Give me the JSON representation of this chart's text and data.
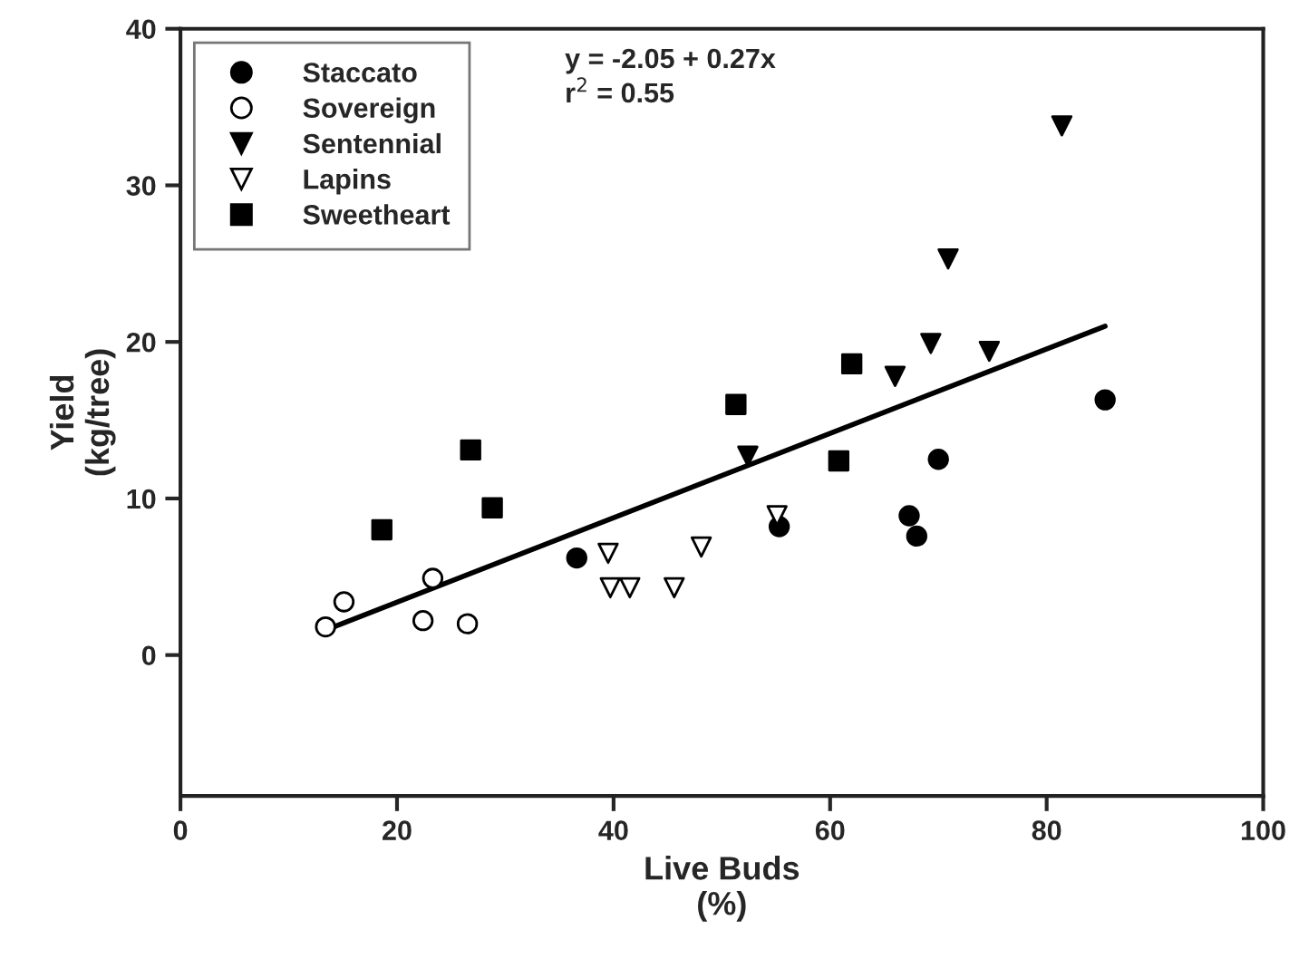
{
  "chart_data": {
    "type": "scatter",
    "xlabel": "Live Buds\n(%)",
    "ylabel": "Yield\n(kg/tree)",
    "xlim": [
      0,
      100
    ],
    "xticks": [
      0,
      20,
      40,
      60,
      80,
      100
    ],
    "ylim": [
      -9,
      40
    ],
    "yticks": [
      0,
      10,
      20,
      30,
      40
    ],
    "grid": false,
    "legend": "top left",
    "annotations": [
      "y = -2.05 + 0.27x",
      "r$^{2}$ = 0.55"
    ],
    "series": [
      {
        "name": "Staccato",
        "color": "#000000",
        "marker": "circle",
        "x": [
          36.6,
          55.3,
          67.3,
          68.0,
          70.0,
          85.4
        ],
        "values": [
          6.2,
          8.2,
          8.9,
          7.6,
          12.5,
          16.3
        ]
      },
      {
        "name": "Sovereign",
        "color": "#ffffff",
        "marker": "circle",
        "x": [
          13.4,
          15.1,
          23.3,
          22.4,
          26.5
        ],
        "values": [
          1.8,
          3.4,
          4.9,
          2.2,
          2.0
        ]
      },
      {
        "name": "Sentennial",
        "color": "#000000",
        "marker": "triangle",
        "x": [
          52.4,
          66.0,
          69.3,
          70.9,
          74.7,
          81.4
        ],
        "values": [
          12.7,
          17.8,
          19.9,
          25.3,
          19.4,
          33.8
        ]
      },
      {
        "name": "Lapins",
        "color": "#ffffff",
        "marker": "triangle",
        "x": [
          39.5,
          39.7,
          41.5,
          45.6,
          48.1,
          55.1
        ],
        "values": [
          6.5,
          4.3,
          4.3,
          4.3,
          6.9,
          8.9
        ]
      },
      {
        "name": "Sweetheart",
        "color": "#000000",
        "marker": "square",
        "x": [
          18.6,
          26.8,
          28.8,
          51.3,
          62.0,
          60.8
        ],
        "values": [
          8.0,
          13.1,
          9.4,
          16.0,
          18.6,
          12.4
        ]
      },
      {
        "type": "line",
        "color": "#000000",
        "line_style": "solid",
        "marker": "none",
        "x": [
          13.4,
          85.4
        ],
        "values": [
          1.6,
          21.0
        ]
      }
    ]
  }
}
